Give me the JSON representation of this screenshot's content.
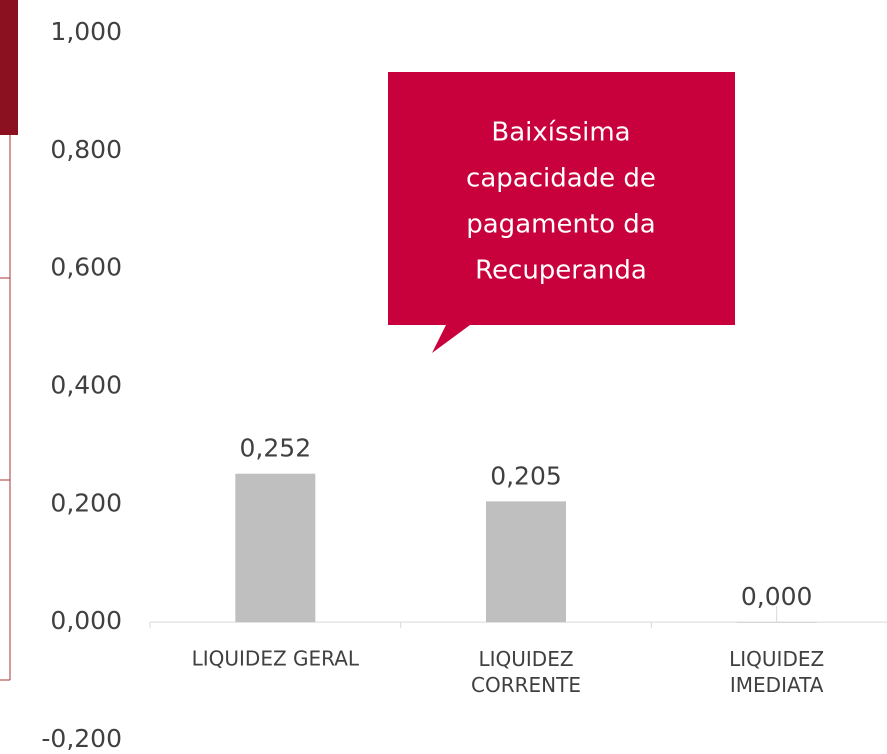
{
  "chart_data": {
    "type": "bar",
    "categories": [
      "LIQUIDEZ GERAL",
      "LIQUIDEZ CORRENTE",
      "LIQUIDEZ IMEDIATA"
    ],
    "values": [
      0.252,
      0.205,
      0.0
    ],
    "value_labels": [
      "0,252",
      "0,205",
      "0,000"
    ],
    "color": "#bfbfbf",
    "ylim": [
      -0.2,
      1.0
    ],
    "yticks": [
      {
        "value": 1.0,
        "label": "1,000"
      },
      {
        "value": 0.8,
        "label": "0,800"
      },
      {
        "value": 0.6,
        "label": "0,600"
      },
      {
        "value": 0.4,
        "label": "0,400"
      },
      {
        "value": 0.2,
        "label": "0,200"
      },
      {
        "value": 0.0,
        "label": "0,000"
      },
      {
        "value": -0.2,
        "label": "-0,200"
      }
    ],
    "grid": false,
    "annotation": [
      "Baixíssima",
      "capacidade de",
      "pagamento da",
      "Recuperanda"
    ],
    "annotation_color": "#c8003c"
  }
}
